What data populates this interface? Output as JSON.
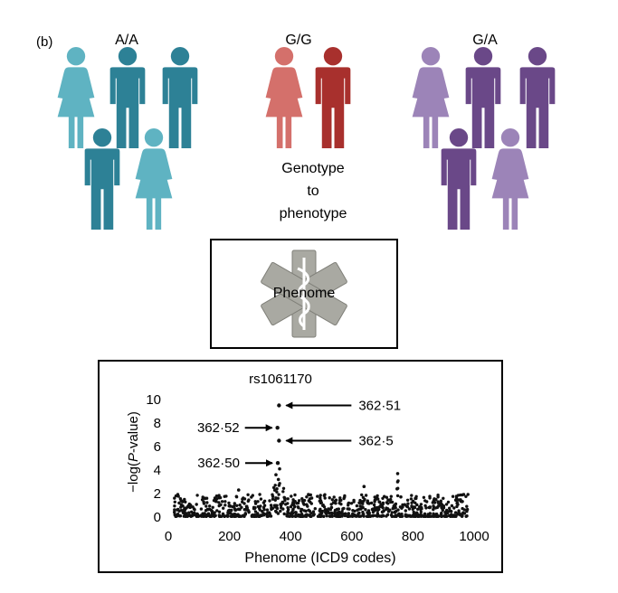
{
  "panel_label": "(b)",
  "groups": [
    {
      "label": "A/A",
      "color_light": "#5fb3c2",
      "color_dark": "#2d8196"
    },
    {
      "label": "G/G",
      "color_light": "#d4706b",
      "color_dark": "#a8302d"
    },
    {
      "label": "G/A",
      "color_light": "#9c84b8",
      "color_dark": "#6a4888"
    }
  ],
  "caption_lines": [
    "Genotype",
    "to",
    "phenotype"
  ],
  "phenome_label": "Phenome",
  "icon": "star-of-life-icon",
  "chart_data": {
    "type": "scatter",
    "title": "rs1061170",
    "xlabel": "Phenome (ICD9 codes)",
    "ylabel": "-log(P-value)",
    "xlim": [
      0,
      1000
    ],
    "ylim": [
      0,
      10
    ],
    "xticks": [
      "0",
      "200",
      "400",
      "600",
      "800",
      "1000"
    ],
    "yticks": [
      "0",
      "2",
      "4",
      "6",
      "8",
      "10"
    ],
    "highlighted_points": [
      {
        "label": "362·51",
        "x": 362,
        "y": 9.5
      },
      {
        "label": "362·52",
        "x": 357,
        "y": 7.6
      },
      {
        "label": "362·5",
        "x": 362,
        "y": 6.5
      },
      {
        "label": "362·50",
        "x": 358,
        "y": 4.6
      }
    ],
    "background_points": "dense scatter of ~1000 phenotypes with -log(P) mostly between 0 and 2, peaks near x=360 and x=750"
  }
}
